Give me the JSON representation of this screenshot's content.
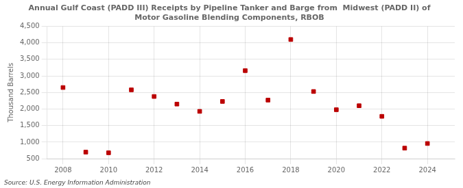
{
  "chart_data": {
    "type": "scatter",
    "title": "Annual Gulf Coast (PADD III) Receipts by Pipeline Tanker and Barge from  Midwest (PADD II) of\nMotor Gasoline Blending Components, RBOB",
    "y_label": "Thousand Barrels",
    "annotation": "Source: U.S. Energy Information Administration",
    "x": [
      2008,
      2009,
      2010,
      2011,
      2012,
      2013,
      2014,
      2015,
      2016,
      2017,
      2018,
      2019,
      2020,
      2021,
      2022,
      2023,
      2024
    ],
    "values": [
      2650,
      700,
      680,
      2580,
      2380,
      2150,
      1930,
      2230,
      3160,
      2270,
      4100,
      2530,
      1980,
      2100,
      1780,
      820,
      960
    ],
    "color": "#bb0000",
    "marker": "square",
    "xlim": [
      2007.3,
      2025.2
    ],
    "xticks": [
      2008,
      2010,
      2012,
      2014,
      2016,
      2018,
      2020,
      2022,
      2024
    ],
    "ylim": [
      500,
      4500
    ],
    "yticks": [
      500,
      {
        "value": 1000,
        "label": "1,000"
      },
      {
        "value": 1500,
        "label": "1,500"
      },
      {
        "value": 2000,
        "label": "2,000"
      },
      {
        "value": 2500,
        "label": "2,500"
      },
      {
        "value": 3000,
        "label": "3,000"
      },
      {
        "value": 3500,
        "label": "3,500"
      },
      {
        "value": 4000,
        "label": "4,000"
      },
      {
        "value": 4500,
        "label": "4,500"
      }
    ],
    "grid": true
  }
}
